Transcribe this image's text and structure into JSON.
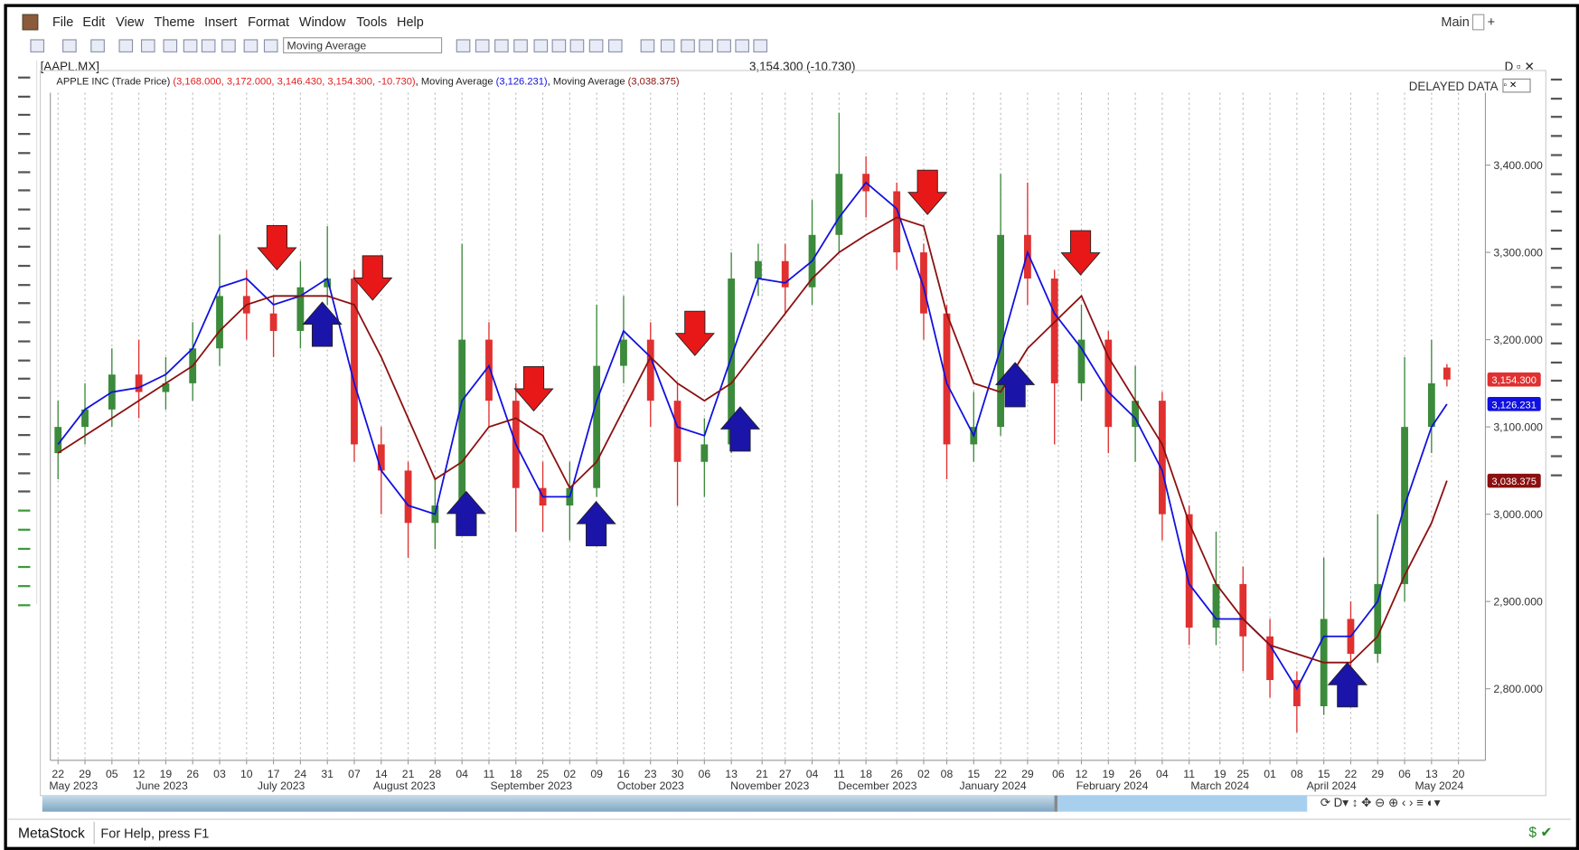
{
  "ui": {
    "menu": [
      "File",
      "Edit",
      "View",
      "Theme",
      "Insert",
      "Format",
      "Window",
      "Tools",
      "Help"
    ],
    "workspace": "Main",
    "indicator_select": "Moving Average",
    "symbol": "[AAPL.MX]",
    "price_header": "3,154.300 (-10.730)",
    "delayed": "DELAYED DATA",
    "legend": [
      {
        "name": "APPLE INC (Trade Price)",
        "values": "(3,168.000, 3,172.000, 3,146.430, 3,154.300, -10.730)"
      },
      {
        "values": "(3,126.231)"
      },
      {
        "values": "(3,038.375)"
      }
    ],
    "periodicity": "D",
    "status_brand": "MetaStock",
    "status_help": "For Help, press F1"
  },
  "chart_data": {
    "type": "candlestick",
    "x": [
      "2023-05-22",
      "2023-05-29",
      "2023-06-05",
      "2023-06-12",
      "2023-06-19",
      "2023-06-26",
      "2023-07-03",
      "2023-07-10",
      "2023-07-17",
      "2023-07-24",
      "2023-07-31",
      "2023-08-07",
      "2023-08-14",
      "2023-08-21",
      "2023-08-28",
      "2023-09-04",
      "2023-09-11",
      "2023-09-18",
      "2023-09-25",
      "2023-10-02",
      "2023-10-09",
      "2023-10-16",
      "2023-10-23",
      "2023-10-30",
      "2023-11-06",
      "2023-11-13",
      "2023-11-20",
      "2023-11-27",
      "2023-12-04",
      "2023-12-11",
      "2023-12-18",
      "2023-12-26",
      "2024-01-02",
      "2024-01-08",
      "2024-01-15",
      "2024-01-22",
      "2024-01-29",
      "2024-02-05",
      "2024-02-12",
      "2024-02-19",
      "2024-02-26",
      "2024-03-04",
      "2024-03-11",
      "2024-03-18",
      "2024-03-25",
      "2024-04-01",
      "2024-04-08",
      "2024-04-15",
      "2024-04-22",
      "2024-04-29",
      "2024-05-06",
      "2024-05-13",
      "2024-05-17"
    ],
    "open": [
      3070,
      3100,
      3120,
      3160,
      3140,
      3150,
      3190,
      3250,
      3230,
      3210,
      3260,
      3270,
      3080,
      3050,
      2990,
      3010,
      3200,
      3130,
      3030,
      3010,
      3030,
      3170,
      3200,
      3130,
      3060,
      3080,
      3270,
      3290,
      3260,
      3320,
      3390,
      3370,
      3300,
      3230,
      3080,
      3100,
      3320,
      3270,
      3150,
      3200,
      3100,
      3130,
      3000,
      2870,
      2920,
      2860,
      2810,
      2780,
      2880,
      2840,
      2920,
      3100,
      3168
    ],
    "high": [
      3130,
      3150,
      3190,
      3200,
      3180,
      3220,
      3320,
      3280,
      3250,
      3290,
      3330,
      3280,
      3100,
      3060,
      3040,
      3310,
      3220,
      3150,
      3060,
      3060,
      3240,
      3250,
      3220,
      3150,
      3110,
      3300,
      3310,
      3310,
      3360,
      3460,
      3410,
      3380,
      3310,
      3240,
      3140,
      3390,
      3380,
      3280,
      3240,
      3210,
      3170,
      3140,
      3010,
      2980,
      2940,
      2880,
      2820,
      2950,
      2900,
      3000,
      3180,
      3200,
      3172
    ],
    "low": [
      3040,
      3080,
      3100,
      3110,
      3120,
      3130,
      3170,
      3200,
      3180,
      3190,
      3240,
      3060,
      3000,
      2950,
      2960,
      3000,
      3100,
      2980,
      2980,
      2970,
      3020,
      3150,
      3100,
      3010,
      3020,
      3070,
      3250,
      3230,
      3240,
      3300,
      3340,
      3280,
      3200,
      3040,
      3060,
      3090,
      3240,
      3080,
      3130,
      3070,
      3060,
      2970,
      2850,
      2850,
      2820,
      2790,
      2750,
      2770,
      2810,
      2830,
      2900,
      3070,
      3146.43
    ],
    "close": [
      3100,
      3120,
      3160,
      3140,
      3150,
      3190,
      3250,
      3230,
      3210,
      3260,
      3270,
      3080,
      3050,
      2990,
      3010,
      3200,
      3130,
      3030,
      3010,
      3030,
      3170,
      3200,
      3130,
      3060,
      3080,
      3270,
      3290,
      3260,
      3320,
      3390,
      3370,
      3300,
      3230,
      3080,
      3100,
      3320,
      3270,
      3150,
      3200,
      3100,
      3130,
      3000,
      2870,
      2920,
      2860,
      2810,
      2780,
      2880,
      2840,
      2920,
      3100,
      3150,
      3154.3
    ],
    "value_labels": [
      null,
      null,
      null,
      null,
      null,
      null,
      null,
      null,
      null,
      null,
      null,
      null,
      null,
      null,
      null,
      null,
      null,
      null,
      null,
      null,
      null,
      null,
      null,
      null,
      null,
      null,
      null,
      null,
      null,
      null,
      null,
      null,
      null,
      null,
      null,
      null,
      null,
      null,
      null,
      null,
      null,
      null,
      null,
      null,
      null,
      null,
      null,
      null,
      null,
      null,
      null,
      null,
      "3,154.300"
    ],
    "up_color": "#3c8a3c",
    "down_color": "#e03030",
    "series": [
      {
        "name": "Moving Average",
        "color": "#1010e0",
        "values": [
          3080,
          3120,
          3140,
          3145,
          3160,
          3190,
          3260,
          3270,
          3240,
          3250,
          3270,
          3150,
          3050,
          3010,
          3000,
          3130,
          3170,
          3080,
          3020,
          3020,
          3130,
          3210,
          3180,
          3100,
          3090,
          3180,
          3270,
          3265,
          3290,
          3340,
          3380,
          3350,
          3260,
          3150,
          3090,
          3190,
          3300,
          3230,
          3190,
          3140,
          3110,
          3050,
          2920,
          2880,
          2880,
          2850,
          2800,
          2860,
          2860,
          2900,
          3010,
          3100,
          3126.231
        ],
        "value_labels": [
          null,
          null,
          null,
          null,
          null,
          null,
          null,
          null,
          null,
          null,
          null,
          null,
          null,
          null,
          null,
          null,
          null,
          null,
          null,
          null,
          null,
          null,
          null,
          null,
          null,
          null,
          null,
          null,
          null,
          null,
          null,
          null,
          null,
          null,
          null,
          null,
          null,
          null,
          null,
          null,
          null,
          null,
          null,
          null,
          null,
          null,
          null,
          null,
          null,
          null,
          null,
          null,
          "3,126.231"
        ]
      },
      {
        "name": "Moving Average",
        "color": "#8b1010",
        "values": [
          3070,
          3090,
          3110,
          3130,
          3150,
          3170,
          3210,
          3240,
          3250,
          3250,
          3250,
          3240,
          3180,
          3110,
          3040,
          3060,
          3100,
          3110,
          3090,
          3030,
          3060,
          3120,
          3180,
          3150,
          3130,
          3150,
          3190,
          3230,
          3270,
          3300,
          3320,
          3340,
          3330,
          3230,
          3150,
          3140,
          3190,
          3220,
          3250,
          3180,
          3130,
          3080,
          2990,
          2920,
          2880,
          2850,
          2840,
          2830,
          2830,
          2860,
          2930,
          2990,
          3038.375
        ],
        "value_labels": [
          null,
          null,
          null,
          null,
          null,
          null,
          null,
          null,
          null,
          null,
          null,
          null,
          null,
          null,
          null,
          null,
          null,
          null,
          null,
          null,
          null,
          null,
          null,
          null,
          null,
          null,
          null,
          null,
          null,
          null,
          null,
          null,
          null,
          null,
          null,
          null,
          null,
          null,
          null,
          null,
          null,
          null,
          null,
          null,
          null,
          null,
          null,
          null,
          null,
          null,
          null,
          null,
          "3,038.375"
        ]
      }
    ],
    "xlim": [
      "2023-05-20",
      "2024-05-27"
    ],
    "ylim": [
      2718,
      3483
    ],
    "yticks": [
      {
        "value": 3400,
        "label": "3,400.000"
      },
      {
        "value": 3300,
        "label": "3,300.000"
      },
      {
        "value": 3200,
        "label": "3,200.000"
      },
      {
        "value": 3100,
        "label": "3,100.000"
      },
      {
        "value": 3000,
        "label": "3,000.000"
      },
      {
        "value": 2900,
        "label": "2,900.000"
      },
      {
        "value": 2800,
        "label": "2,800.000"
      }
    ],
    "xticks": [
      {
        "value": "2023-05-22",
        "label": "22"
      },
      {
        "value": "2023-05-29",
        "label": "29"
      },
      {
        "value": "2023-06-05",
        "label": "05"
      },
      {
        "value": "2023-06-12",
        "label": "12"
      },
      {
        "value": "2023-06-19",
        "label": "19"
      },
      {
        "value": "2023-06-26",
        "label": "26"
      },
      {
        "value": "2023-07-03",
        "label": "03"
      },
      {
        "value": "2023-07-10",
        "label": "10"
      },
      {
        "value": "2023-07-17",
        "label": "17"
      },
      {
        "value": "2023-07-24",
        "label": "24"
      },
      {
        "value": "2023-07-31",
        "label": "31"
      },
      {
        "value": "2023-08-07",
        "label": "07"
      },
      {
        "value": "2023-08-14",
        "label": "14"
      },
      {
        "value": "2023-08-21",
        "label": "21"
      },
      {
        "value": "2023-08-28",
        "label": "28"
      },
      {
        "value": "2023-09-04",
        "label": "04"
      },
      {
        "value": "2023-09-11",
        "label": "11"
      },
      {
        "value": "2023-09-18",
        "label": "18"
      },
      {
        "value": "2023-09-25",
        "label": "25"
      },
      {
        "value": "2023-10-02",
        "label": "02"
      },
      {
        "value": "2023-10-09",
        "label": "09"
      },
      {
        "value": "2023-10-16",
        "label": "16"
      },
      {
        "value": "2023-10-23",
        "label": "23"
      },
      {
        "value": "2023-10-30",
        "label": "30"
      },
      {
        "value": "2023-11-06",
        "label": "06"
      },
      {
        "value": "2023-11-13",
        "label": "13"
      },
      {
        "value": "2023-11-21",
        "label": "21"
      },
      {
        "value": "2023-11-27",
        "label": "27"
      },
      {
        "value": "2023-12-04",
        "label": "04"
      },
      {
        "value": "2023-12-11",
        "label": "11"
      },
      {
        "value": "2023-12-18",
        "label": "18"
      },
      {
        "value": "2023-12-26",
        "label": "26"
      },
      {
        "value": "2024-01-02",
        "label": "02"
      },
      {
        "value": "2024-01-08",
        "label": "08"
      },
      {
        "value": "2024-01-15",
        "label": "15"
      },
      {
        "value": "2024-01-22",
        "label": "22"
      },
      {
        "value": "2024-01-29",
        "label": "29"
      },
      {
        "value": "2024-02-06",
        "label": "06"
      },
      {
        "value": "2024-02-12",
        "label": "12"
      },
      {
        "value": "2024-02-19",
        "label": "19"
      },
      {
        "value": "2024-02-26",
        "label": "26"
      },
      {
        "value": "2024-03-04",
        "label": "04"
      },
      {
        "value": "2024-03-11",
        "label": "11"
      },
      {
        "value": "2024-03-19",
        "label": "19"
      },
      {
        "value": "2024-03-25",
        "label": "25"
      },
      {
        "value": "2024-04-01",
        "label": "01"
      },
      {
        "value": "2024-04-08",
        "label": "08"
      },
      {
        "value": "2024-04-15",
        "label": "15"
      },
      {
        "value": "2024-04-22",
        "label": "22"
      },
      {
        "value": "2024-04-29",
        "label": "29"
      },
      {
        "value": "2024-05-06",
        "label": "06"
      },
      {
        "value": "2024-05-13",
        "label": "13"
      },
      {
        "value": "2024-05-20",
        "label": "20"
      }
    ],
    "xmonths": [
      {
        "value": "2023-05-26",
        "label": "May 2023"
      },
      {
        "value": "2023-06-18",
        "label": "June 2023"
      },
      {
        "value": "2023-07-19",
        "label": "July 2023"
      },
      {
        "value": "2023-08-20",
        "label": "August 2023"
      },
      {
        "value": "2023-09-22",
        "label": "September 2023"
      },
      {
        "value": "2023-10-23",
        "label": "October 2023"
      },
      {
        "value": "2023-11-23",
        "label": "November 2023"
      },
      {
        "value": "2023-12-21",
        "label": "December 2023"
      },
      {
        "value": "2024-01-20",
        "label": "January 2024"
      },
      {
        "value": "2024-02-20",
        "label": "February 2024"
      },
      {
        "value": "2024-03-19",
        "label": "March 2024"
      },
      {
        "value": "2024-04-17",
        "label": "April 2024"
      },
      {
        "value": "2024-05-15",
        "label": "May 2024"
      }
    ],
    "grid": true
  }
}
